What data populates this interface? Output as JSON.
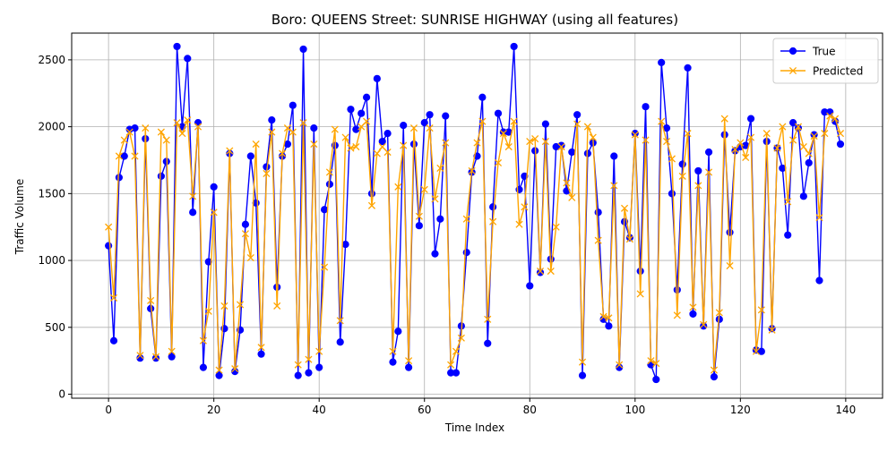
{
  "chart_data": {
    "type": "line",
    "title": "Boro: QUEENS Street: SUNRISE HIGHWAY (using all features)",
    "xlabel": "Time Index",
    "ylabel": "Traffic Volume",
    "xlim": [
      -7,
      147
    ],
    "ylim": [
      -30,
      2700
    ],
    "x_ticks": [
      0,
      20,
      40,
      60,
      80,
      100,
      120,
      140
    ],
    "y_ticks": [
      0,
      500,
      1000,
      1500,
      2000,
      2500
    ],
    "grid": true,
    "legend_position": "top-right",
    "series": [
      {
        "name": "True",
        "color": "#0000ff",
        "marker": "circle",
        "values": [
          1110,
          400,
          1620,
          1780,
          1980,
          1990,
          270,
          1910,
          640,
          270,
          1630,
          1740,
          280,
          2600,
          2000,
          2510,
          1360,
          2030,
          200,
          990,
          1550,
          140,
          490,
          1800,
          170,
          480,
          1270,
          1780,
          1430,
          300,
          1700,
          2050,
          800,
          1780,
          1870,
          2160,
          140,
          2580,
          160,
          1990,
          200,
          1380,
          1570,
          1860,
          390,
          1120,
          2130,
          1980,
          2100,
          2220,
          1500,
          2360,
          1890,
          1950,
          240,
          470,
          2010,
          200,
          1870,
          1260,
          2030,
          2090,
          1050,
          1310,
          2080,
          160,
          160,
          510,
          1060,
          1660,
          1780,
          2220,
          380,
          1400,
          2100,
          1960,
          1960,
          2600,
          1530,
          1630,
          810,
          1820,
          910,
          2020,
          1010,
          1850,
          1860,
          1520,
          1810,
          2090,
          140,
          1800,
          1880,
          1360,
          560,
          510,
          1780,
          200,
          1290,
          1170,
          1950,
          920,
          2150,
          220,
          110,
          2480,
          1990,
          1500,
          780,
          1720,
          2440,
          600,
          1670,
          510,
          1810,
          130,
          560,
          1940,
          1210,
          1820,
          1850,
          1860,
          2060,
          330,
          320,
          1890,
          490,
          1840,
          1690,
          1190,
          2030,
          1990,
          1480,
          1730,
          1940,
          850,
          2110,
          2110,
          2040,
          1870
        ]
      },
      {
        "name": "Predicted",
        "color": "#ffa500",
        "marker": "x",
        "values": [
          1250,
          720,
          1780,
          1900,
          1960,
          1780,
          290,
          1990,
          700,
          280,
          1960,
          1900,
          320,
          2030,
          1950,
          2050,
          1480,
          2000,
          400,
          620,
          1360,
          180,
          660,
          1820,
          190,
          670,
          1200,
          1020,
          1870,
          350,
          1650,
          1960,
          660,
          1800,
          1990,
          1960,
          220,
          2030,
          260,
          1870,
          320,
          950,
          1660,
          1980,
          550,
          1920,
          1840,
          1850,
          2000,
          2040,
          1410,
          1800,
          1850,
          1810,
          320,
          1550,
          1860,
          250,
          1990,
          1330,
          1530,
          1990,
          1460,
          1690,
          1880,
          220,
          320,
          420,
          1310,
          1670,
          1880,
          2040,
          560,
          1290,
          1730,
          1950,
          1850,
          2040,
          1270,
          1400,
          1890,
          1910,
          920,
          1890,
          920,
          1250,
          1850,
          1580,
          1470,
          2020,
          240,
          2000,
          1920,
          1150,
          580,
          570,
          1560,
          220,
          1390,
          1160,
          1940,
          750,
          1900,
          250,
          230,
          2040,
          1890,
          1760,
          590,
          1630,
          1950,
          650,
          1560,
          520,
          1660,
          180,
          610,
          2060,
          960,
          1830,
          1880,
          1770,
          1920,
          320,
          630,
          1950,
          480,
          1840,
          2000,
          1440,
          1900,
          2000,
          1850,
          1800,
          1930,
          1320,
          1950,
          2080,
          2060,
          1950
        ]
      }
    ]
  }
}
